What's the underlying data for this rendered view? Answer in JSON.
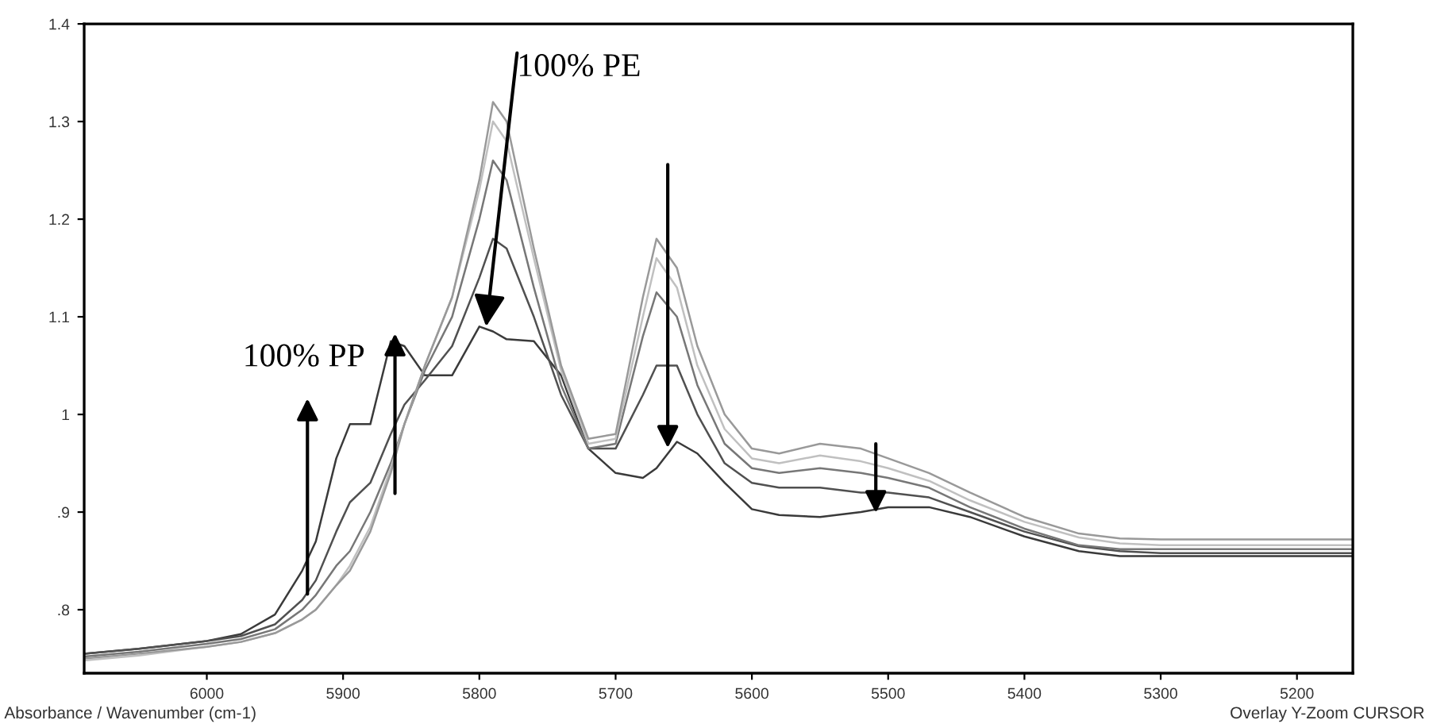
{
  "chart_data": {
    "type": "line",
    "xlabel": "Absorbance / Wavenumber (cm-1)",
    "annotations": [
      {
        "text": "100% PE",
        "x": 5795,
        "y": 1.09
      },
      "100% PP",
      "Overlay Y-Zoom CURSOR"
    ],
    "x": [
      6090,
      6050,
      6000,
      5975,
      5950,
      5930,
      5920,
      5905,
      5895,
      5880,
      5865,
      5855,
      5840,
      5820,
      5800,
      5790,
      5780,
      5760,
      5740,
      5720,
      5700,
      5680,
      5670,
      5655,
      5640,
      5620,
      5600,
      5580,
      5550,
      5520,
      5500,
      5470,
      5440,
      5400,
      5360,
      5330,
      5300,
      5250,
      5200,
      5160
    ],
    "series": [
      {
        "color": "#3a3a3a",
        "values": [
          0.755,
          0.76,
          0.768,
          0.775,
          0.795,
          0.84,
          0.87,
          0.955,
          0.99,
          0.99,
          1.075,
          1.07,
          1.04,
          1.04,
          1.09,
          1.085,
          1.077,
          1.075,
          1.04,
          0.965,
          0.94,
          0.935,
          0.945,
          0.972,
          0.96,
          0.93,
          0.903,
          0.897,
          0.895,
          0.9,
          0.905,
          0.905,
          0.895,
          0.875,
          0.86,
          0.855,
          0.855,
          0.855,
          0.855,
          0.855
        ]
      },
      {
        "color": "#505050",
        "values": [
          0.755,
          0.76,
          0.768,
          0.773,
          0.785,
          0.81,
          0.83,
          0.88,
          0.91,
          0.93,
          0.98,
          1.01,
          1.035,
          1.07,
          1.14,
          1.18,
          1.17,
          1.1,
          1.02,
          0.965,
          0.965,
          1.02,
          1.05,
          1.05,
          1.0,
          0.95,
          0.93,
          0.925,
          0.925,
          0.92,
          0.92,
          0.915,
          0.9,
          0.88,
          0.865,
          0.86,
          0.858,
          0.858,
          0.858,
          0.858
        ]
      },
      {
        "color": "#777777",
        "values": [
          0.752,
          0.757,
          0.765,
          0.77,
          0.78,
          0.8,
          0.815,
          0.845,
          0.86,
          0.9,
          0.95,
          0.99,
          1.045,
          1.1,
          1.2,
          1.26,
          1.24,
          1.13,
          1.03,
          0.965,
          0.97,
          1.08,
          1.125,
          1.1,
          1.03,
          0.97,
          0.945,
          0.94,
          0.945,
          0.94,
          0.935,
          0.925,
          0.905,
          0.883,
          0.866,
          0.862,
          0.862,
          0.862,
          0.862,
          0.862
        ]
      },
      {
        "color": "#c0c0c0",
        "values": [
          0.748,
          0.753,
          0.762,
          0.767,
          0.776,
          0.79,
          0.8,
          0.825,
          0.845,
          0.885,
          0.945,
          0.99,
          1.05,
          1.12,
          1.23,
          1.3,
          1.28,
          1.16,
          1.045,
          0.97,
          0.975,
          1.1,
          1.16,
          1.13,
          1.05,
          0.985,
          0.955,
          0.95,
          0.958,
          0.952,
          0.945,
          0.932,
          0.912,
          0.89,
          0.874,
          0.868,
          0.866,
          0.866,
          0.866,
          0.866
        ]
      },
      {
        "color": "#999999",
        "values": [
          0.75,
          0.755,
          0.762,
          0.767,
          0.776,
          0.79,
          0.8,
          0.825,
          0.84,
          0.88,
          0.94,
          0.99,
          1.05,
          1.12,
          1.24,
          1.32,
          1.3,
          1.17,
          1.05,
          0.975,
          0.98,
          1.12,
          1.18,
          1.15,
          1.07,
          1.0,
          0.965,
          0.96,
          0.97,
          0.965,
          0.955,
          0.94,
          0.92,
          0.895,
          0.878,
          0.873,
          0.872,
          0.872,
          0.872,
          0.872
        ]
      }
    ],
    "xlim": [
      6090,
      5159
    ],
    "xticks": [
      6000,
      5900,
      5800,
      5700,
      5600,
      5500,
      5400,
      5300,
      5200
    ],
    "ylim": [
      0.735,
      1.4
    ],
    "yticks": [
      {
        "value": 0.8,
        "label": ".8"
      },
      {
        "value": 0.9,
        "label": ".9"
      },
      1,
      1.1,
      1.2,
      1.3,
      1.4
    ],
    "grid": false,
    "marker": "none",
    "line_style": "solid"
  }
}
